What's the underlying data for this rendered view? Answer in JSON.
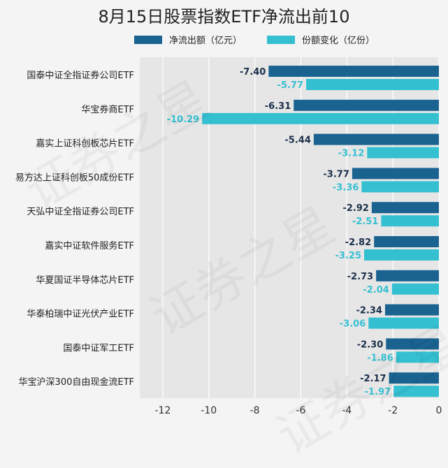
{
  "chart_data": {
    "type": "bar",
    "orientation": "horizontal",
    "title": "8月15日股票指数ETF净流出前10",
    "categories": [
      "国泰中证全指证券公司ETF",
      "华宝券商ETF",
      "嘉实上证科创板芯片ETF",
      "易方达上证科创板50成份ETF",
      "天弘中证全指证券公司ETF",
      "嘉实中证软件服务ETF",
      "华夏国证半导体芯片ETF",
      "华泰柏瑞中证光伏产业ETF",
      "国泰中证军工ETF",
      "华宝沪深300自由现金流ETF"
    ],
    "series": [
      {
        "name": "净流出额（亿元）",
        "color": "#1a6391",
        "values": [
          -7.4,
          -6.31,
          -5.44,
          -3.77,
          -2.92,
          -2.82,
          -2.73,
          -2.34,
          -2.3,
          -2.17
        ],
        "labels": [
          "-7.40",
          "-6.31",
          "-5.44",
          "-3.77",
          "-2.92",
          "-2.82",
          "-2.73",
          "-2.34",
          "-2.30",
          "-2.17"
        ]
      },
      {
        "name": "份额变化（亿份）",
        "color": "#35c0d2",
        "values": [
          -5.77,
          -10.29,
          -3.12,
          -3.36,
          -2.51,
          -3.25,
          -2.04,
          -3.06,
          -1.86,
          -1.97
        ],
        "labels": [
          "-5.77",
          "-10.29",
          "-3.12",
          "-3.36",
          "-2.51",
          "-3.25",
          "-2.04",
          "-3.06",
          "-1.86",
          "-1.97"
        ]
      }
    ],
    "xlim": [
      -13,
      0
    ],
    "xticks": [
      -12,
      -10,
      -8,
      -6,
      -4,
      -2,
      0
    ],
    "xtick_labels": [
      "-12",
      "-10",
      "-8",
      "-6",
      "-4",
      "-2",
      "0"
    ],
    "xlabel": "",
    "ylabel": "",
    "grid": true,
    "legend_position": "top-center",
    "plot_background": "#e6e6e6"
  },
  "watermark_text": "证券之星"
}
